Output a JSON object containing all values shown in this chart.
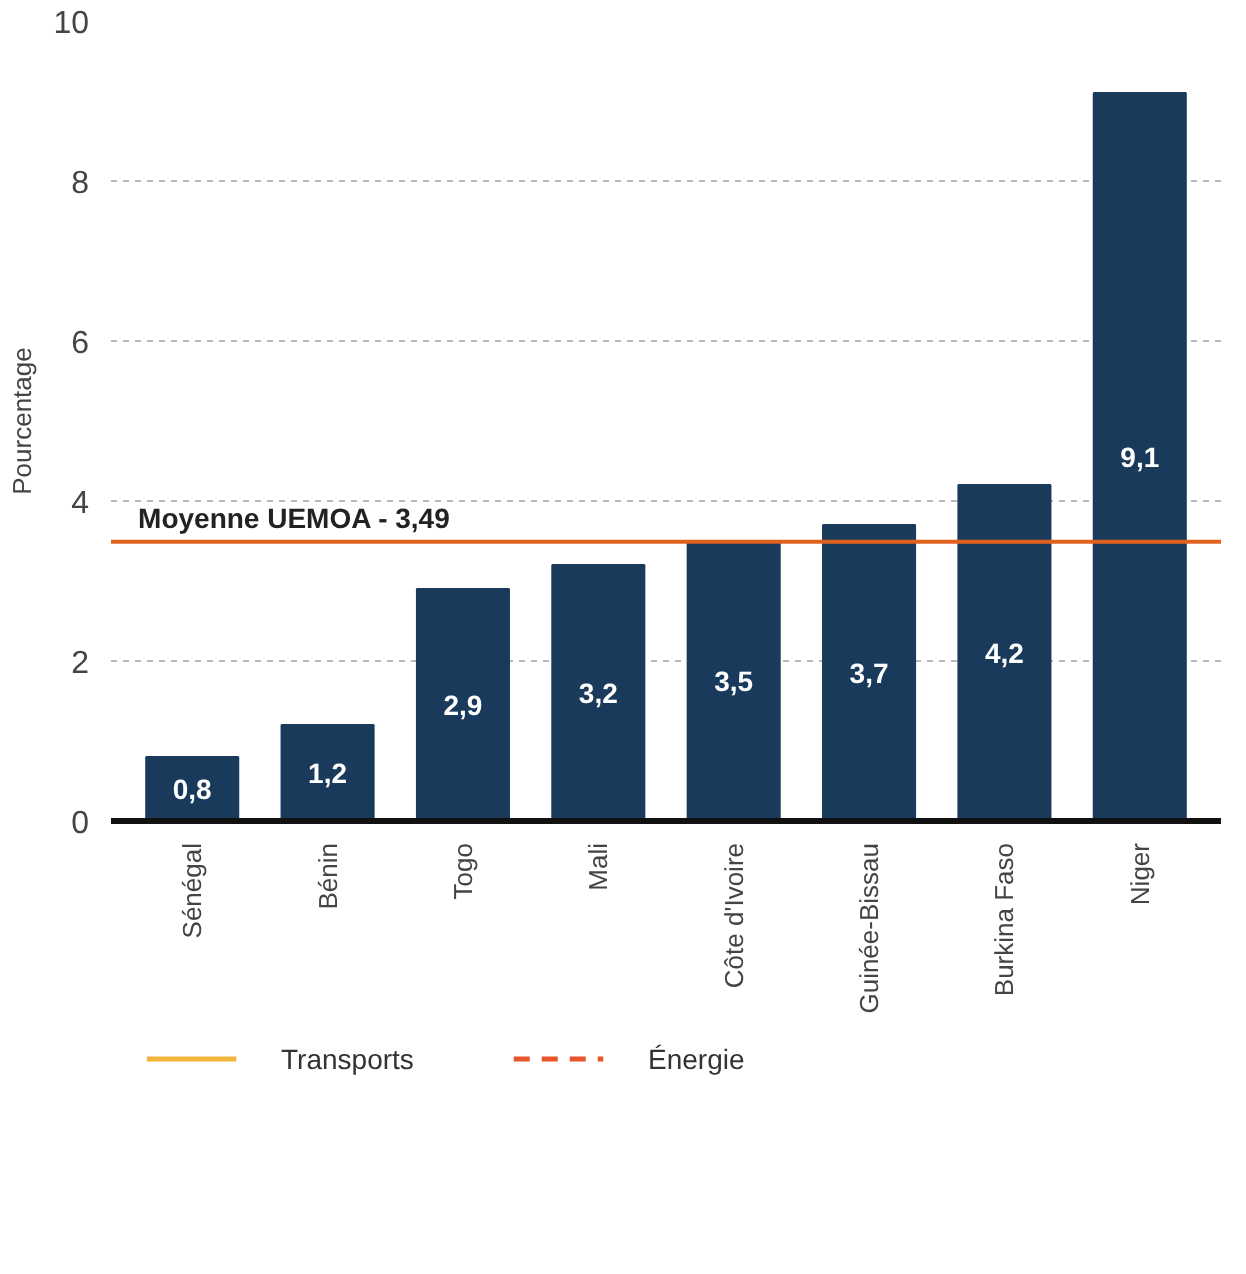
{
  "chart_data": {
    "type": "bar",
    "ylabel": "Pourcentage",
    "categories": [
      "Sénégal",
      "Bénin",
      "Togo",
      "Mali",
      "Côte d'Ivoire",
      "Guinée-Bissau",
      "Burkina Faso",
      "Niger"
    ],
    "series": [
      {
        "values": [
          0.8,
          1.2,
          2.9,
          3.2,
          3.5,
          3.7,
          4.2,
          9.1
        ],
        "color": "#1a3a5c",
        "value_labels": [
          "0,8",
          "1,2",
          "2,9",
          "3,2",
          "3,5",
          "3,7",
          "4,2",
          "9,1"
        ]
      },
      {
        "type": "line",
        "name": "Transports",
        "color": "#f2b53a",
        "line_style": "solid",
        "values": [
          null,
          null,
          null,
          null,
          null,
          null,
          null,
          null
        ]
      },
      {
        "type": "line",
        "name": "Énergie",
        "color": "#e8552b",
        "line_style": "dashed",
        "values": [
          null,
          null,
          null,
          null,
          null,
          null,
          null,
          null
        ]
      }
    ],
    "ylim": [
      0,
      10
    ],
    "yticks": [
      0,
      2,
      4,
      6,
      8,
      10
    ],
    "grid": "y",
    "legend": "bottom",
    "ref_lines": [
      {
        "axis": "y",
        "value": 3.49,
        "label": "Moyenne UEMOA - 3,49",
        "color": "#e0611e"
      }
    ]
  }
}
